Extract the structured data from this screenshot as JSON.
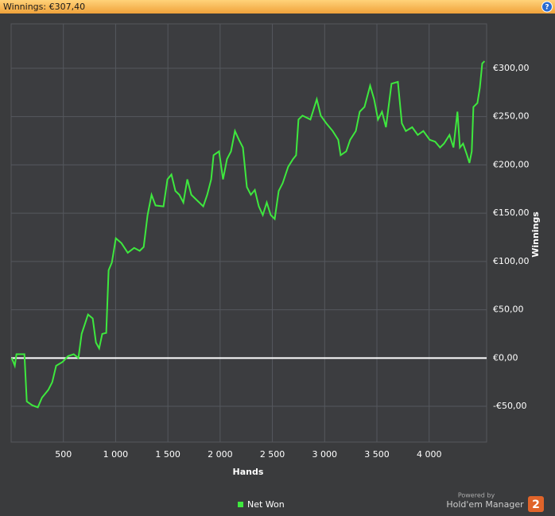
{
  "chart_data": {
    "type": "line",
    "title": "Winnings: €307,40",
    "help_icon": "?",
    "x_label": "Hands",
    "y_label": "Winnings",
    "x": [
      5,
      35,
      51,
      127,
      150,
      203,
      256,
      295,
      355,
      393,
      431,
      492,
      545,
      599,
      644,
      675,
      736,
      781,
      812,
      842,
      872,
      910,
      933,
      964,
      1002,
      1055,
      1116,
      1177,
      1230,
      1268,
      1306,
      1344,
      1382,
      1458,
      1496,
      1534,
      1572,
      1610,
      1648,
      1686,
      1724,
      1762,
      1800,
      1838,
      1876,
      1914,
      1937,
      1990,
      2028,
      2066,
      2104,
      2142,
      2180,
      2218,
      2256,
      2294,
      2332,
      2370,
      2408,
      2446,
      2484,
      2522,
      2560,
      2598,
      2651,
      2697,
      2727,
      2750,
      2788,
      2864,
      2925,
      2963,
      3016,
      3077,
      3130,
      3153,
      3206,
      3244,
      3298,
      3336,
      3381,
      3435,
      3473,
      3511,
      3549,
      3587,
      3640,
      3701,
      3739,
      3777,
      3838,
      3891,
      3944,
      4005,
      4058,
      4104,
      4142,
      4195,
      4233,
      4271,
      4294,
      4325,
      4363,
      4386,
      4408,
      4424,
      4462,
      4485,
      4508,
      4530
    ],
    "series": [
      {
        "name": "Net Won",
        "color": "#3ee83e",
        "values": [
          0,
          -8,
          4,
          4,
          -45,
          -49,
          -51,
          -41,
          -33,
          -25,
          -8,
          -4,
          2,
          4,
          0,
          25,
          45,
          41,
          16,
          10,
          25,
          26,
          91,
          99,
          124,
          119,
          109,
          114,
          111,
          115,
          148,
          169,
          158,
          157,
          185,
          190,
          173,
          169,
          161,
          185,
          169,
          165,
          161,
          157,
          169,
          185,
          210,
          214,
          185,
          206,
          214,
          235,
          226,
          218,
          177,
          169,
          174,
          157,
          148,
          161,
          148,
          144,
          173,
          181,
          198,
          206,
          210,
          247,
          251,
          247,
          268,
          251,
          243,
          235,
          226,
          210,
          214,
          226,
          235,
          255,
          260,
          282,
          268,
          247,
          255,
          239,
          284,
          286,
          243,
          235,
          239,
          231,
          235,
          226,
          224,
          218,
          222,
          231,
          218,
          255,
          218,
          222,
          210,
          202,
          214,
          260,
          264,
          280,
          305,
          307.4
        ]
      }
    ],
    "xlim": [
      0,
      4550
    ],
    "ylim": [
      -87,
      346
    ],
    "xticks": [
      {
        "value": 500,
        "label": "500"
      },
      {
        "value": 1000,
        "label": "1 000"
      },
      {
        "value": 1500,
        "label": "1 500"
      },
      {
        "value": 2000,
        "label": "2 000"
      },
      {
        "value": 2500,
        "label": "2 500"
      },
      {
        "value": 3000,
        "label": "3 000"
      },
      {
        "value": 3500,
        "label": "3 500"
      },
      {
        "value": 4000,
        "label": "4 000"
      }
    ],
    "yticks": [
      {
        "value": -50,
        "label": "-€50,00"
      },
      {
        "value": 0,
        "label": "€0,00"
      },
      {
        "value": 50,
        "label": "€50,00"
      },
      {
        "value": 100,
        "label": "€100,00"
      },
      {
        "value": 150,
        "label": "€150,00"
      },
      {
        "value": 200,
        "label": "€200,00"
      },
      {
        "value": 250,
        "label": "€250,00"
      },
      {
        "value": 300,
        "label": "€300,00"
      }
    ],
    "grid": true,
    "legend": "bottom"
  },
  "branding": {
    "powered_by": "Powered by",
    "product": "Hold'em Manager",
    "version": "2"
  }
}
